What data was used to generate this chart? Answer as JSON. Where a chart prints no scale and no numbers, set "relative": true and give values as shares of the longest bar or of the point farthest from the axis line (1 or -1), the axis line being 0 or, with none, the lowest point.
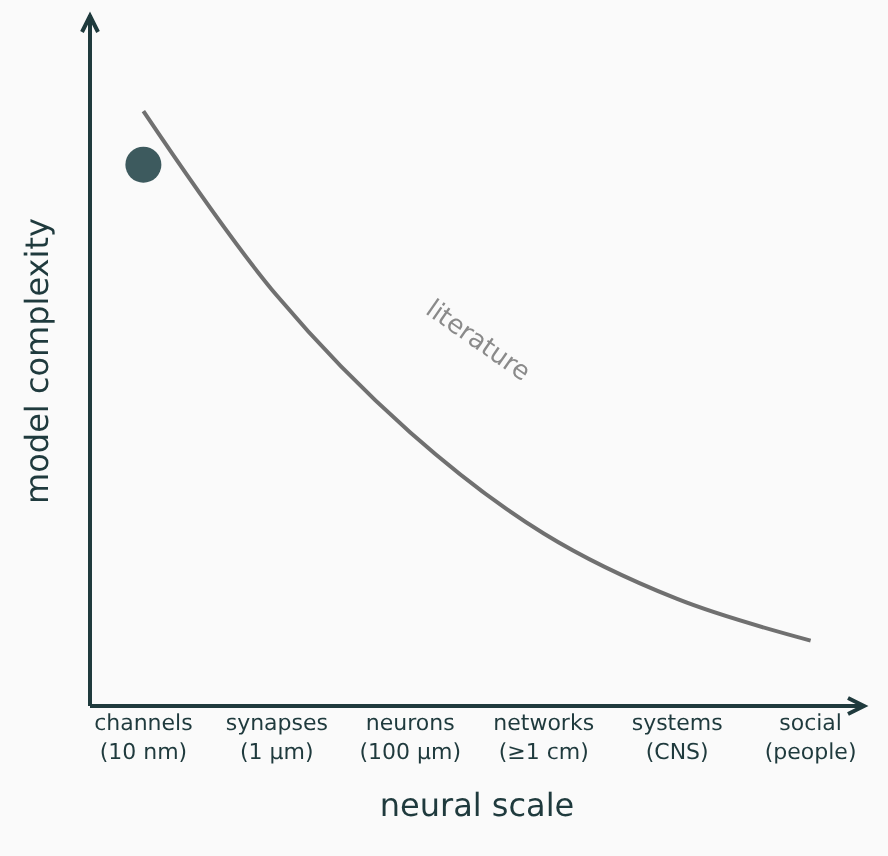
{
  "chart_data": {
    "type": "line",
    "relative": true,
    "xlabel": "neural scale",
    "ylabel": "model complexity",
    "categories": [
      "channels\n(10 nm)",
      "synapses\n(1 μm)",
      "neurons\n(100 μm)",
      "networks\n(≥1 cm)",
      "systems\n(CNS)",
      "social\n(people)"
    ],
    "series": [
      {
        "color": "#707070",
        "values": [
          1,
          0.69,
          0.46,
          0.29,
          0.18,
          0.11
        ]
      },
      {
        "type": "scatter",
        "color": "#3d5a5e",
        "marker": "circle",
        "x": [
          "channels\n(10 nm)"
        ],
        "values": [
          0.91
        ]
      }
    ],
    "annotations": [
      "literature"
    ]
  }
}
